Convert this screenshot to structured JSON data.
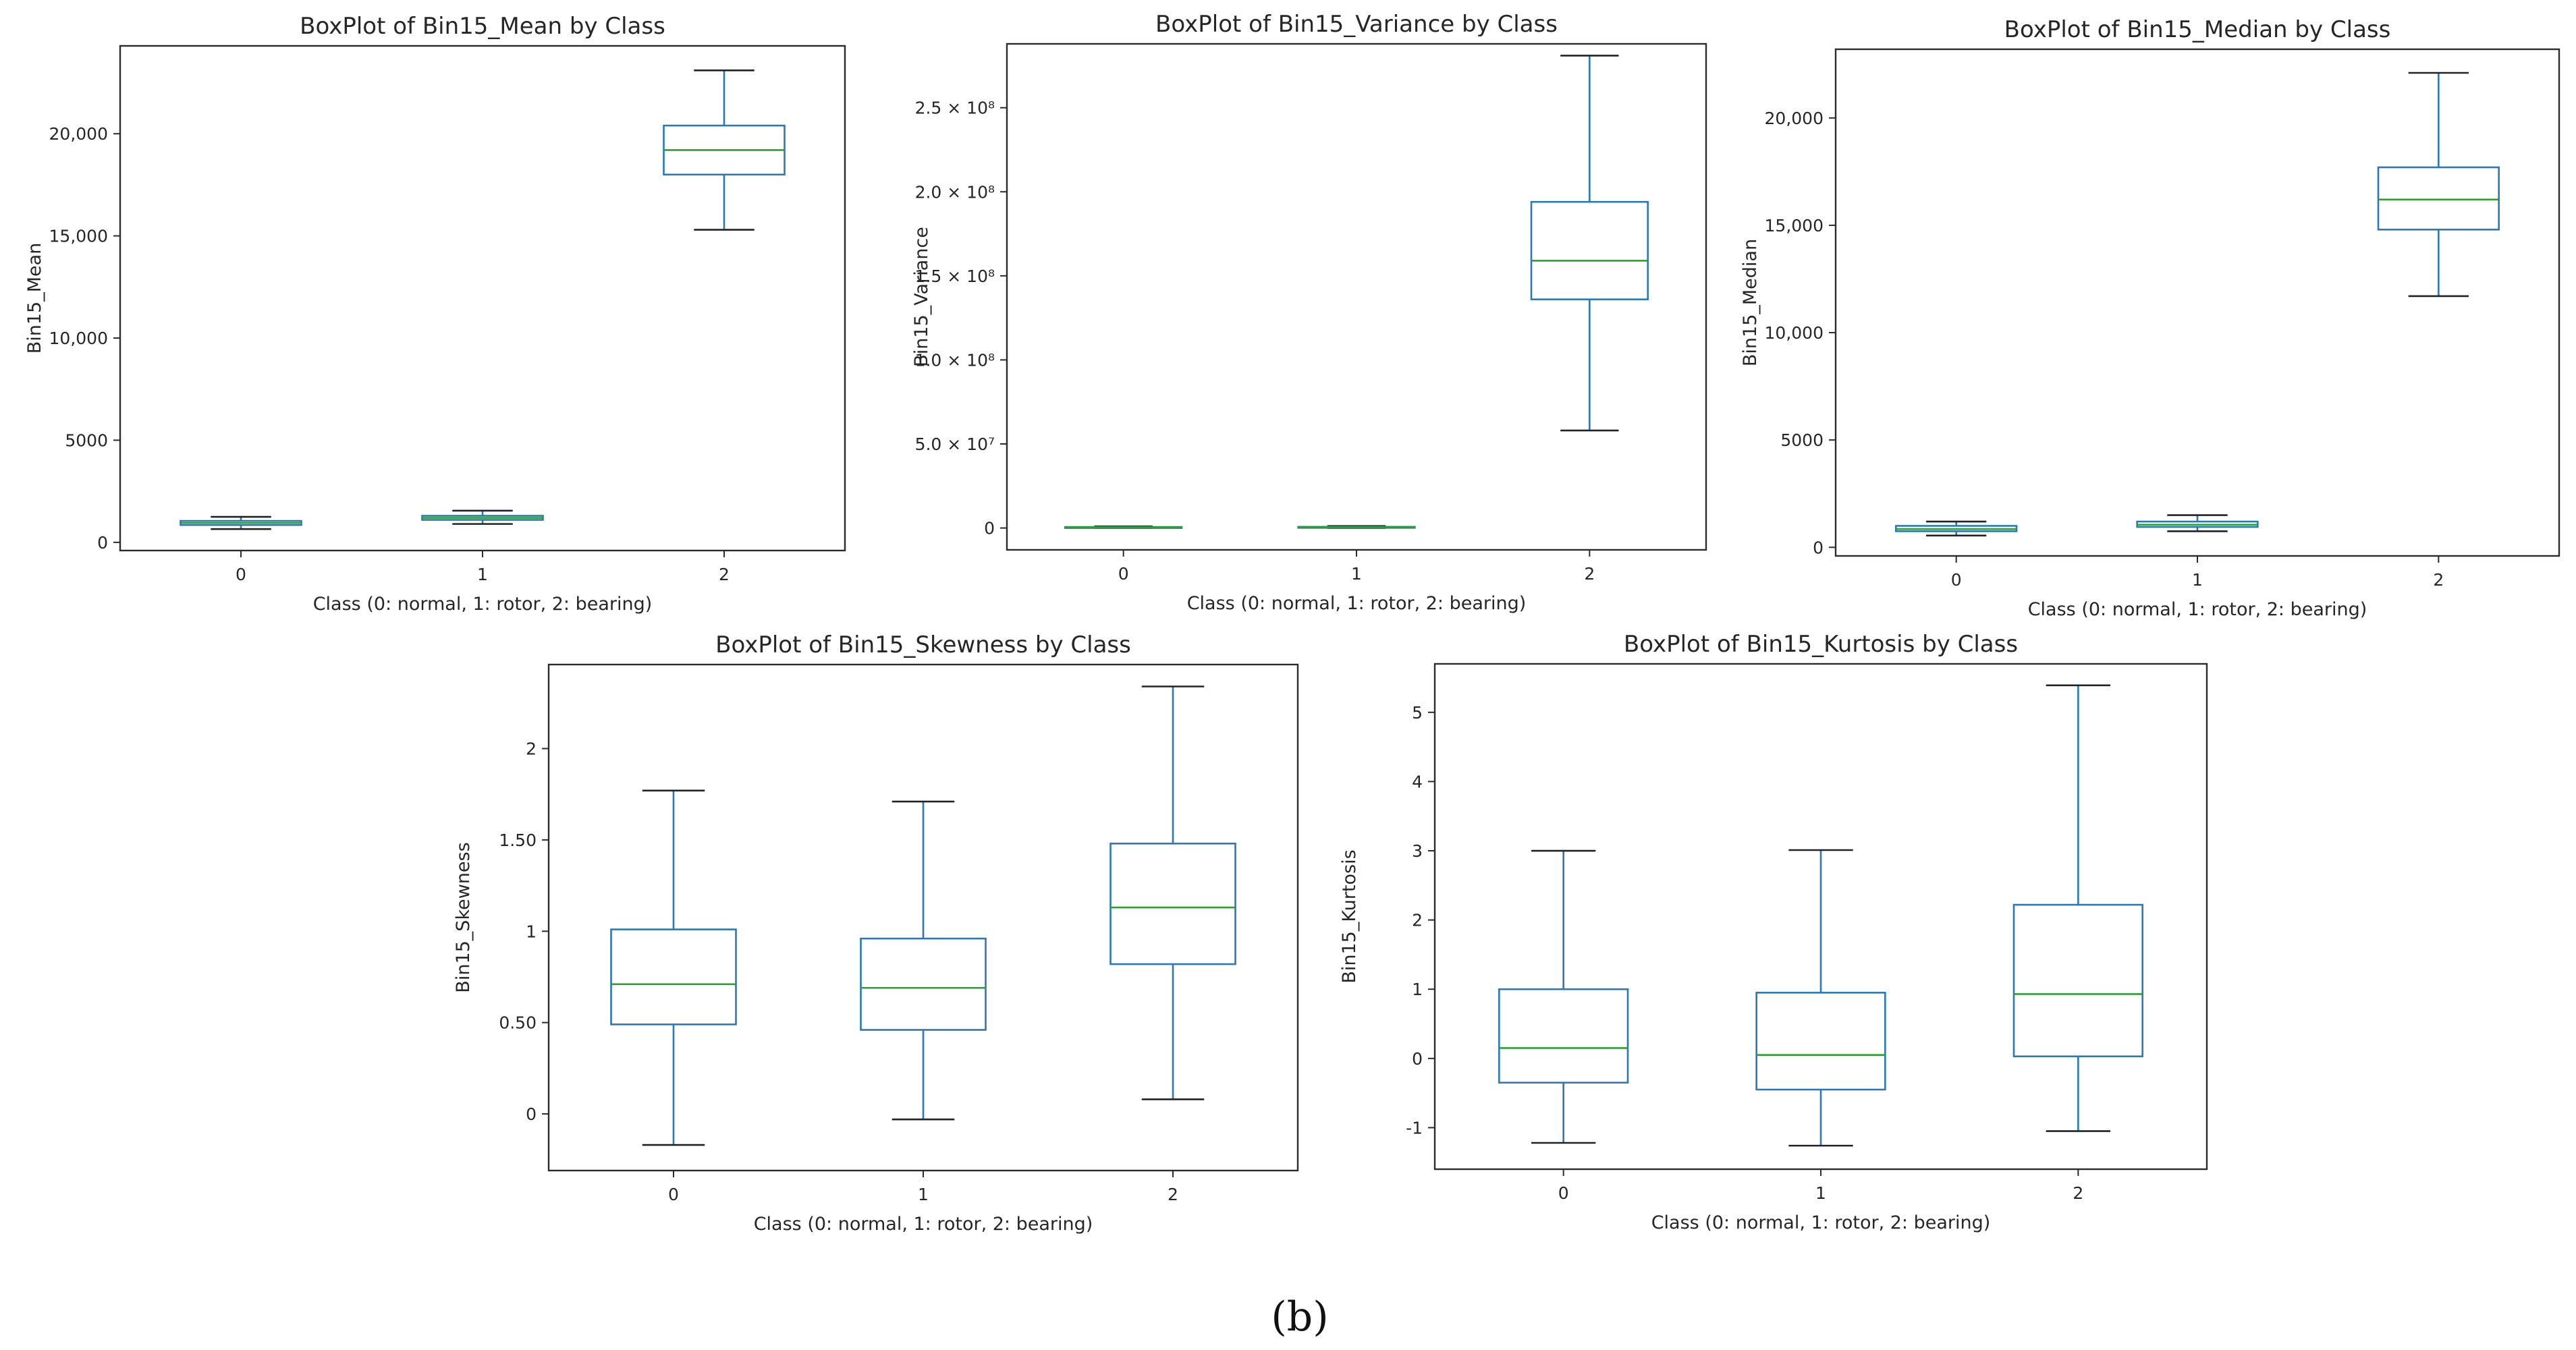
{
  "figure_label": "(b)",
  "colors": {
    "box": "#2a78b8",
    "median": "#2ca02c",
    "cap": "#222222",
    "frame": "#2b2b2b"
  },
  "chart_data": [
    {
      "type": "box",
      "title": "BoxPlot of Bin15_Mean by Class",
      "xlabel": "Class (0: normal, 1: rotor, 2: bearing)",
      "ylabel": "Bin15_Mean",
      "categories": [
        "0",
        "1",
        "2"
      ],
      "ylim": [
        -400,
        24300
      ],
      "yticks": [
        0,
        5000,
        10000,
        15000,
        20000
      ],
      "ytick_labels": [
        "0",
        "5000",
        "10,000",
        "15,000",
        "20,000"
      ],
      "boxes": [
        {
          "class": "0",
          "whislo": 650,
          "q1": 850,
          "med": 950,
          "q3": 1050,
          "whishi": 1250
        },
        {
          "class": "1",
          "whislo": 900,
          "q1": 1100,
          "med": 1200,
          "q3": 1300,
          "whishi": 1550
        },
        {
          "class": "2",
          "whislo": 15300,
          "q1": 18000,
          "med": 19200,
          "q3": 20400,
          "whishi": 23100
        }
      ]
    },
    {
      "type": "box",
      "title": "BoxPlot of Bin15_Variance by Class",
      "xlabel": "Class (0: normal, 1: rotor, 2: bearing)",
      "ylabel": "Bin15_Variance",
      "categories": [
        "0",
        "1",
        "2"
      ],
      "ylim": [
        -13000000,
        288000000
      ],
      "yticks": [
        0,
        50000000,
        100000000,
        150000000,
        200000000,
        250000000
      ],
      "ytick_labels": [
        "0",
        "5.0 × 10⁷",
        "1.0 × 10⁸",
        "1.5 × 10⁸",
        "2.0 × 10⁸",
        "2.5 × 10⁸"
      ],
      "boxes": [
        {
          "class": "0",
          "whislo": 0,
          "q1": 200000,
          "med": 400000,
          "q3": 600000,
          "whishi": 1000000
        },
        {
          "class": "1",
          "whislo": 0,
          "q1": 200000,
          "med": 400000,
          "q3": 700000,
          "whishi": 1200000
        },
        {
          "class": "2",
          "whislo": 58000000,
          "q1": 136000000,
          "med": 159000000,
          "q3": 194000000,
          "whishi": 281000000
        }
      ]
    },
    {
      "type": "box",
      "title": "BoxPlot of Bin15_Median by Class",
      "xlabel": "Class (0: normal, 1: rotor, 2: bearing)",
      "ylabel": "Bin15_Median",
      "categories": [
        "0",
        "1",
        "2"
      ],
      "ylim": [
        -400,
        23200
      ],
      "yticks": [
        0,
        5000,
        10000,
        15000,
        20000
      ],
      "ytick_labels": [
        "0",
        "5000",
        "10,000",
        "15,000",
        "20,000"
      ],
      "boxes": [
        {
          "class": "0",
          "whislo": 550,
          "q1": 750,
          "med": 850,
          "q3": 1000,
          "whishi": 1200
        },
        {
          "class": "1",
          "whislo": 750,
          "q1": 950,
          "med": 1050,
          "q3": 1200,
          "whishi": 1500
        },
        {
          "class": "2",
          "whislo": 11700,
          "q1": 14800,
          "med": 16200,
          "q3": 17700,
          "whishi": 22100
        }
      ]
    },
    {
      "type": "box",
      "title": "BoxPlot of Bin15_Skewness by Class",
      "xlabel": "Class (0: normal, 1: rotor, 2: bearing)",
      "ylabel": "Bin15_Skewness",
      "categories": [
        "0",
        "1",
        "2"
      ],
      "ylim": [
        -0.31,
        2.46
      ],
      "yticks": [
        0,
        0.5,
        1,
        1.5,
        2
      ],
      "ytick_labels": [
        "0",
        "0.50",
        "1",
        "1.50",
        "2"
      ],
      "boxes": [
        {
          "class": "0",
          "whislo": -0.17,
          "q1": 0.49,
          "med": 0.71,
          "q3": 1.01,
          "whishi": 1.77
        },
        {
          "class": "1",
          "whislo": -0.03,
          "q1": 0.46,
          "med": 0.69,
          "q3": 0.96,
          "whishi": 1.71
        },
        {
          "class": "2",
          "whislo": 0.08,
          "q1": 0.82,
          "med": 1.13,
          "q3": 1.48,
          "whishi": 2.34
        }
      ]
    },
    {
      "type": "box",
      "title": "BoxPlot of Bin15_Kurtosis by Class",
      "xlabel": "Class (0: normal, 1: rotor, 2: bearing)",
      "ylabel": "Bin15_Kurtosis",
      "categories": [
        "0",
        "1",
        "2"
      ],
      "ylim": [
        -1.6,
        5.7
      ],
      "yticks": [
        -1,
        0,
        1,
        2,
        3,
        4,
        5
      ],
      "ytick_labels": [
        "-1",
        "0",
        "1",
        "2",
        "3",
        "4",
        "5"
      ],
      "boxes": [
        {
          "class": "0",
          "whislo": -1.22,
          "q1": -0.35,
          "med": 0.15,
          "q3": 1.0,
          "whishi": 3.0
        },
        {
          "class": "1",
          "whislo": -1.26,
          "q1": -0.45,
          "med": 0.05,
          "q3": 0.95,
          "whishi": 3.01
        },
        {
          "class": "2",
          "whislo": -1.05,
          "q1": 0.03,
          "med": 0.93,
          "q3": 2.22,
          "whishi": 5.39
        }
      ]
    }
  ]
}
